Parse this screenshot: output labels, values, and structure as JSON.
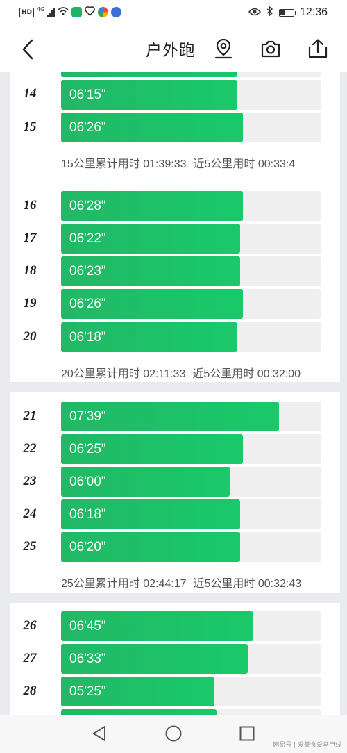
{
  "status_bar": {
    "network_badge": "HD",
    "network_type": "4G",
    "time": "12:36",
    "icons": [
      "signal-icon",
      "wifi-icon",
      "app-icon",
      "heart-icon",
      "app-icon",
      "app-icon",
      "eye-icon",
      "bluetooth-icon",
      "battery-icon"
    ]
  },
  "header": {
    "title": "户外跑",
    "icons": [
      "back-icon",
      "location-icon",
      "camera-icon",
      "share-icon"
    ]
  },
  "accent_color": "#1fc06a",
  "splits": [
    {
      "km": "",
      "pace": "",
      "fill": 0.68,
      "partial_top": true
    },
    {
      "km": "14",
      "pace": "06'15\"",
      "fill": 0.68
    },
    {
      "km": "15",
      "pace": "06'26\"",
      "fill": 0.7
    },
    {
      "km": "16",
      "pace": "06'28\"",
      "fill": 0.7
    },
    {
      "km": "17",
      "pace": "06'22\"",
      "fill": 0.69
    },
    {
      "km": "18",
      "pace": "06'23\"",
      "fill": 0.69
    },
    {
      "km": "19",
      "pace": "06'26\"",
      "fill": 0.7
    },
    {
      "km": "20",
      "pace": "06'18\"",
      "fill": 0.68
    },
    {
      "km": "21",
      "pace": "07'39\"",
      "fill": 0.84
    },
    {
      "km": "22",
      "pace": "06'25\"",
      "fill": 0.7
    },
    {
      "km": "23",
      "pace": "06'00\"",
      "fill": 0.65
    },
    {
      "km": "24",
      "pace": "06'18\"",
      "fill": 0.69
    },
    {
      "km": "25",
      "pace": "06'20\"",
      "fill": 0.69
    },
    {
      "km": "26",
      "pace": "06'45\"",
      "fill": 0.74
    },
    {
      "km": "27",
      "pace": "06'33\"",
      "fill": 0.72
    },
    {
      "km": "28",
      "pace": "05'25\"",
      "fill": 0.59
    },
    {
      "km": "",
      "pace": "",
      "fill": 0.6,
      "partial_bottom": true
    }
  ],
  "summaries": [
    {
      "cumulative": "15公里累计用时 01:39:33",
      "last5": "近5公里用时 00:33:4"
    },
    {
      "cumulative": "20公里累计用时 02:11:33",
      "last5": "近5公里用时 00:32:00"
    },
    {
      "cumulative": "25公里累计用时 02:44:17",
      "last5": "近5公里用时 00:32:43"
    }
  ],
  "nav": {
    "icons": [
      "nav-back-icon",
      "nav-home-icon",
      "nav-recents-icon"
    ]
  },
  "watermark": "网易号 | 爱美食爱马甲线"
}
